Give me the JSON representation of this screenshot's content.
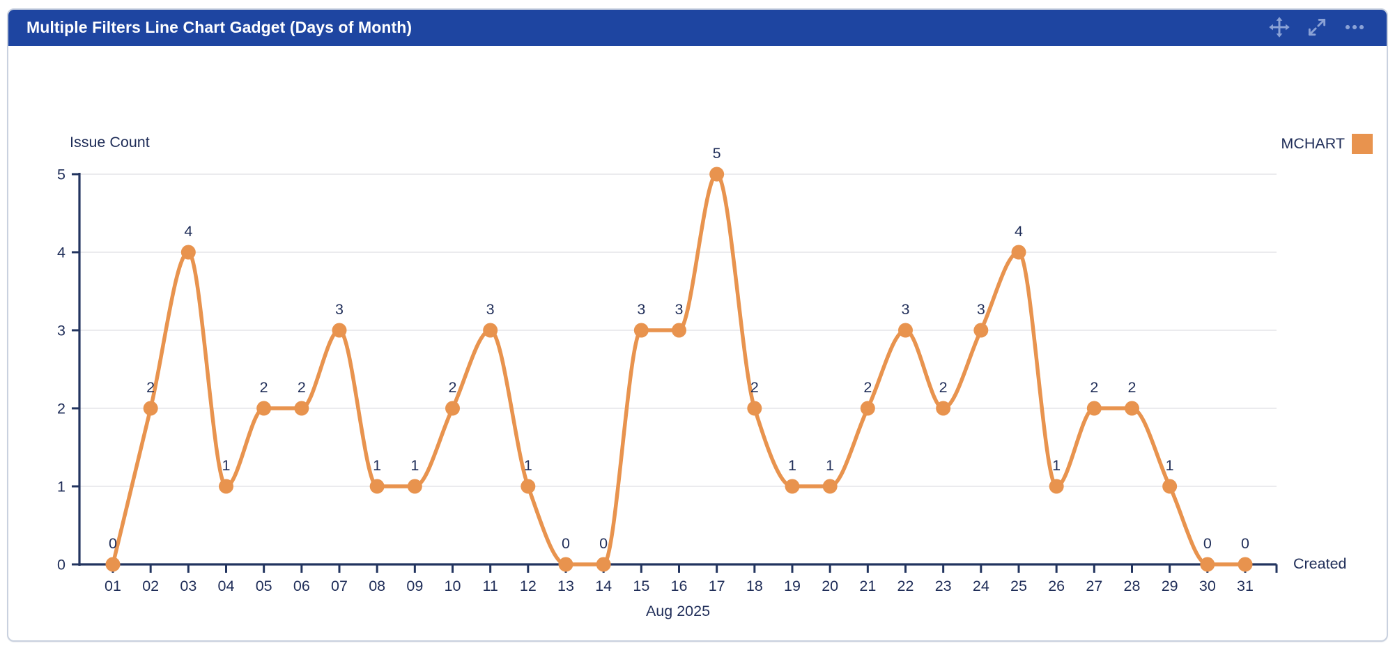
{
  "header": {
    "title": "Multiple Filters Line Chart Gadget (Days of Month)",
    "actions": [
      {
        "name": "move",
        "icon": "move-icon"
      },
      {
        "name": "expand",
        "icon": "expand-icon"
      },
      {
        "name": "more",
        "icon": "ellipsis-icon"
      }
    ]
  },
  "chart_data": {
    "type": "line",
    "ylabel": "Issue Count",
    "xlabel": "Aug 2025",
    "x_axis_end_label": "Created",
    "categories": [
      "01",
      "02",
      "03",
      "04",
      "05",
      "06",
      "07",
      "08",
      "09",
      "10",
      "11",
      "12",
      "13",
      "14",
      "15",
      "16",
      "17",
      "18",
      "19",
      "20",
      "21",
      "22",
      "23",
      "24",
      "25",
      "26",
      "27",
      "28",
      "29",
      "30",
      "31"
    ],
    "series": [
      {
        "name": "MCHART",
        "color": "#E8934E",
        "values": [
          0,
          2,
          4,
          1,
          2,
          2,
          3,
          1,
          1,
          2,
          3,
          1,
          0,
          0,
          3,
          3,
          5,
          2,
          1,
          1,
          2,
          3,
          2,
          3,
          4,
          1,
          2,
          2,
          1,
          0,
          0
        ]
      }
    ],
    "ylim": [
      0,
      5
    ],
    "yticks": [
      0,
      1,
      2,
      3,
      4,
      5
    ],
    "grid": "horizontal",
    "legend_position": "top-right",
    "point_labels": true,
    "curve": "monotone"
  },
  "colors": {
    "header_bg": "#1E45A1",
    "header_text": "#ffffff",
    "header_icon": "#8BA2D6",
    "axis": "#22345F",
    "text": "#1F2D58",
    "gridline": "#EBEBEE",
    "series_orange": "#E8934E",
    "card_border": "#C9D1DF",
    "card_bg": "#ffffff"
  }
}
